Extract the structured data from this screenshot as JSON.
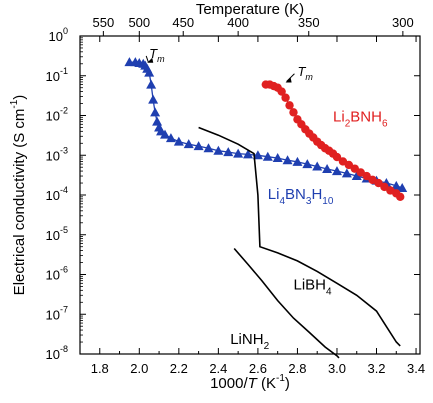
{
  "chart_data": {
    "type": "scatter",
    "x_axis": {
      "label_pre": "1000/",
      "label_var": "T",
      "label_post": " (K",
      "label_sup": "-1",
      "label_close": ")",
      "range": [
        1.7,
        3.42
      ],
      "ticks": [
        "1.8",
        "2.0",
        "2.2",
        "2.4",
        "2.6",
        "2.8",
        "3.0",
        "3.2",
        "3.4"
      ]
    },
    "top_axis": {
      "label": "Temperature (K)",
      "ticks": [
        "550",
        "500",
        "450",
        "400",
        "350",
        "300"
      ]
    },
    "y_axis": {
      "label_main": "Electrical conductivity (S cm",
      "label_sup": "-1",
      "label_close": ")",
      "scale": "log",
      "range_exp": [
        -8,
        0
      ],
      "tick_base": "10",
      "tick_exponents": [
        "0",
        "-1",
        "-2",
        "-3",
        "-4",
        "-5",
        "-6",
        "-7",
        "-8"
      ]
    },
    "series": [
      {
        "marker": "triangle",
        "color": "#1f3fb0",
        "x": [
          1.95,
          1.98,
          2.0,
          2.02,
          2.03,
          2.04,
          2.05,
          2.06,
          2.07,
          2.08,
          2.09,
          2.1,
          2.11,
          2.13,
          2.16,
          2.2,
          2.25,
          2.3,
          2.35,
          2.4,
          2.45,
          2.5,
          2.55,
          2.6,
          2.65,
          2.7,
          2.75,
          2.8,
          2.85,
          2.9,
          2.95,
          3.0,
          3.05,
          3.1,
          3.15,
          3.2,
          3.25,
          3.3,
          3.33
        ],
        "y": [
          0.22,
          0.22,
          0.21,
          0.2,
          0.18,
          0.15,
          0.12,
          0.06,
          0.025,
          0.012,
          0.007,
          0.005,
          0.004,
          0.0033,
          0.0027,
          0.0022,
          0.0019,
          0.0017,
          0.0015,
          0.0013,
          0.0012,
          0.0011,
          0.00105,
          0.001,
          0.00092,
          0.00085,
          0.00075,
          0.00068,
          0.0006,
          0.00052,
          0.00045,
          0.0004,
          0.00035,
          0.0003,
          0.00026,
          0.00023,
          0.0002,
          0.00017,
          0.00015
        ]
      },
      {
        "marker": "circle",
        "color": "#e02020",
        "x": [
          2.64,
          2.66,
          2.68,
          2.7,
          2.72,
          2.74,
          2.76,
          2.78,
          2.8,
          2.82,
          2.84,
          2.86,
          2.88,
          2.9,
          2.92,
          2.94,
          2.96,
          2.98,
          3.0,
          3.03,
          3.06,
          3.09,
          3.12,
          3.15,
          3.18,
          3.21,
          3.24,
          3.27,
          3.3,
          3.32
        ],
        "y": [
          0.06,
          0.06,
          0.055,
          0.05,
          0.04,
          0.028,
          0.018,
          0.012,
          0.008,
          0.006,
          0.0045,
          0.0035,
          0.0028,
          0.0022,
          0.0018,
          0.0015,
          0.0013,
          0.0011,
          0.0009,
          0.0007,
          0.00057,
          0.00046,
          0.00037,
          0.0003,
          0.00024,
          0.0002,
          0.00016,
          0.00013,
          0.00011,
          9e-05
        ]
      },
      {
        "marker": "line",
        "color": "#000000",
        "x": [
          2.3,
          2.4,
          2.5,
          2.58,
          2.6,
          2.61,
          2.7,
          2.8,
          2.9,
          3.0,
          3.1,
          3.2,
          3.3,
          3.32
        ],
        "y": [
          0.005,
          0.0032,
          0.0019,
          0.0011,
          0.0001,
          5e-06,
          3.5e-06,
          2.2e-06,
          1.2e-06,
          6e-07,
          3e-07,
          1.2e-07,
          2e-08,
          1.6e-08
        ]
      },
      {
        "marker": "line",
        "color": "#000000",
        "x": [
          2.48,
          2.55,
          2.62,
          2.7,
          2.78,
          2.86,
          2.94,
          3.0,
          3.01
        ],
        "y": [
          4.5e-06,
          1.8e-06,
          7e-07,
          2.2e-07,
          8e-08,
          3.5e-08,
          1.5e-08,
          9e-09,
          8e-09
        ]
      }
    ],
    "labels": [
      {
        "text": "Li",
        "sub": "4",
        "text2": "BN",
        "sub2": "3",
        "text3": "H",
        "sub3": "10",
        "color": "#1f3fb0",
        "x": 2.65,
        "y": 8e-05
      },
      {
        "text": "Li",
        "sub": "2",
        "text2": "BNH",
        "sub2": "6",
        "text3": "",
        "sub3": "",
        "color": "#e02020",
        "x": 2.98,
        "y": 0.007
      },
      {
        "text": "LiBH",
        "sub": "4",
        "text2": "",
        "sub2": "",
        "text3": "",
        "sub3": "",
        "color": "#000000",
        "x": 2.78,
        "y": 4.2e-07
      },
      {
        "text": "LiNH",
        "sub": "2",
        "text2": "",
        "sub2": "",
        "text3": "",
        "sub3": "",
        "color": "#000000",
        "x": 2.46,
        "y": 1.8e-08
      }
    ],
    "annotations": [
      {
        "var": "T",
        "sub": "m",
        "x": 2.05,
        "y": 0.28,
        "ax": 2.03,
        "ay": 0.2
      },
      {
        "var": "T",
        "sub": "m",
        "x": 2.8,
        "y": 0.1,
        "ax": 2.73,
        "ay": 0.064
      }
    ]
  }
}
